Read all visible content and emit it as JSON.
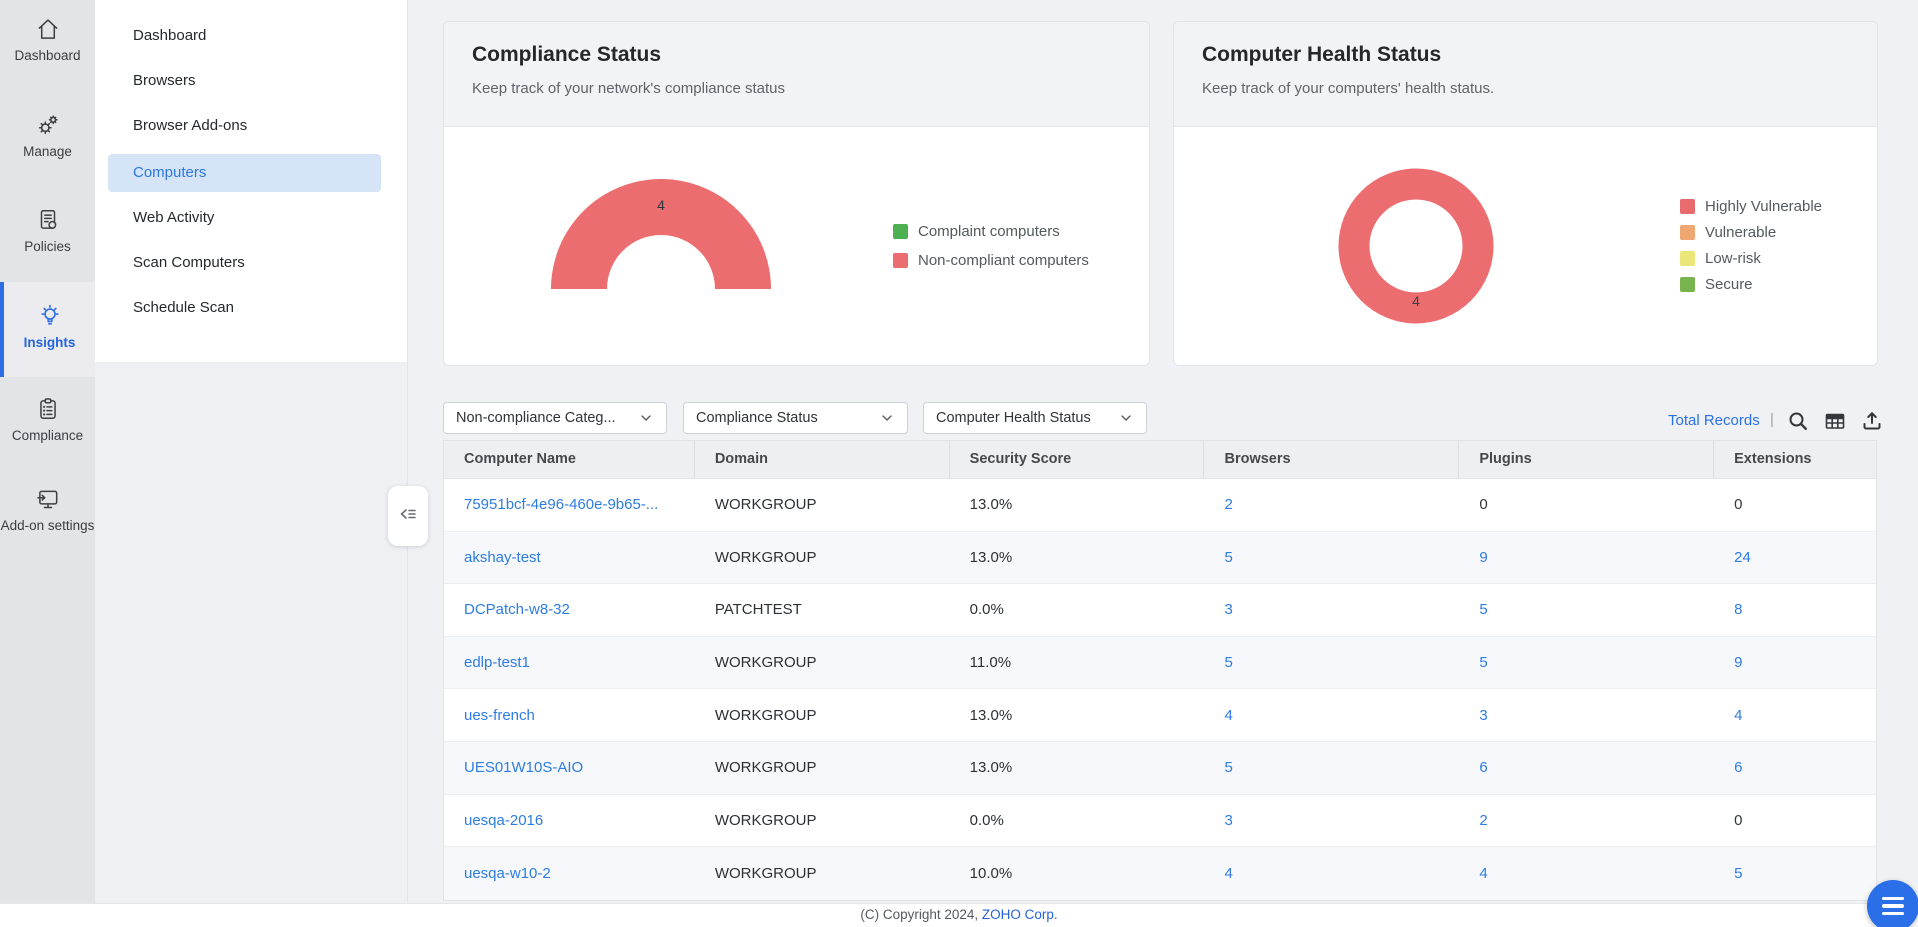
{
  "icon_rail": {
    "items": [
      {
        "label": "Dashboard",
        "icon": "home-icon",
        "selected": false
      },
      {
        "label": "Manage",
        "icon": "manage-gears-icon",
        "selected": false
      },
      {
        "label": "Policies",
        "icon": "policies-doc-icon",
        "selected": false
      },
      {
        "label": "Insights",
        "icon": "insights-bulb-icon",
        "selected": true
      },
      {
        "label": "Compliance",
        "icon": "compliance-clipboard-icon",
        "selected": false
      },
      {
        "label": "Add-on settings",
        "icon": "addon-settings-icon",
        "selected": false
      }
    ]
  },
  "menu": {
    "items": [
      {
        "label": "Dashboard",
        "selected": false
      },
      {
        "label": "Browsers",
        "selected": false
      },
      {
        "label": "Browser Add-ons",
        "selected": false
      },
      {
        "label": "Computers",
        "selected": true
      },
      {
        "label": "Web Activity",
        "selected": false
      },
      {
        "label": "Scan Computers",
        "selected": false
      },
      {
        "label": "Schedule Scan",
        "selected": false
      }
    ]
  },
  "cards": [
    {
      "title": "Compliance Status",
      "subtitle": "Keep track of your network's compliance status",
      "value": "4",
      "legend": [
        {
          "label": "Complaint computers",
          "color": "#4caf50"
        },
        {
          "label": "Non-compliant computers",
          "color": "#ec6d6f"
        }
      ]
    },
    {
      "title": "Computer Health Status",
      "subtitle": "Keep track of your computers' health status.",
      "value": "4",
      "legend": [
        {
          "label": "Highly Vulnerable",
          "color": "#e96a6d"
        },
        {
          "label": "Vulnerable",
          "color": "#efa871"
        },
        {
          "label": "Low-risk",
          "color": "#ece579"
        },
        {
          "label": "Secure",
          "color": "#77b44e"
        }
      ]
    }
  ],
  "chart_data": [
    {
      "type": "pie",
      "variant": "half-donut",
      "title": "Compliance Status",
      "labels": [
        "Complaint computers",
        "Non-compliant computers"
      ],
      "values": [
        0,
        4
      ],
      "colors": [
        "#4caf50",
        "#ec6d6f"
      ],
      "center_label": "4",
      "legend_position": "right"
    },
    {
      "type": "pie",
      "variant": "donut",
      "title": "Computer Health Status",
      "labels": [
        "Highly Vulnerable",
        "Vulnerable",
        "Low-risk",
        "Secure"
      ],
      "values": [
        4,
        0,
        0,
        0
      ],
      "colors": [
        "#e96a6d",
        "#efa871",
        "#ece579",
        "#77b44e"
      ],
      "center_label": "4",
      "legend_position": "right"
    }
  ],
  "filters": [
    {
      "label": "Non-compliance Categ..."
    },
    {
      "label": "Compliance Status"
    },
    {
      "label": "Computer Health Status"
    }
  ],
  "toolbar": {
    "total_records_label": "Total Records",
    "separator": "|"
  },
  "table": {
    "columns": [
      "Computer Name",
      "Domain",
      "Security Score",
      "Browsers",
      "Plugins",
      "Extensions"
    ],
    "rows": [
      {
        "computer_name": "75951bcf-4e96-460e-9b65-...",
        "domain": "WORKGROUP",
        "security_score": "13.0%",
        "browsers": "2",
        "plugins": "0",
        "extensions": "0"
      },
      {
        "computer_name": "akshay-test",
        "domain": "WORKGROUP",
        "security_score": "13.0%",
        "browsers": "5",
        "plugins": "9",
        "extensions": "24"
      },
      {
        "computer_name": "DCPatch-w8-32",
        "domain": "PATCHTEST",
        "security_score": "0.0%",
        "browsers": "3",
        "plugins": "5",
        "extensions": "8"
      },
      {
        "computer_name": "edlp-test1",
        "domain": "WORKGROUP",
        "security_score": "11.0%",
        "browsers": "5",
        "plugins": "5",
        "extensions": "9"
      },
      {
        "computer_name": "ues-french",
        "domain": "WORKGROUP",
        "security_score": "13.0%",
        "browsers": "4",
        "plugins": "3",
        "extensions": "4"
      },
      {
        "computer_name": "UES01W10S-AIO",
        "domain": "WORKGROUP",
        "security_score": "13.0%",
        "browsers": "5",
        "plugins": "6",
        "extensions": "6"
      },
      {
        "computer_name": "uesqa-2016",
        "domain": "WORKGROUP",
        "security_score": "0.0%",
        "browsers": "3",
        "plugins": "2",
        "extensions": "0"
      },
      {
        "computer_name": "uesqa-w10-2",
        "domain": "WORKGROUP",
        "security_score": "10.0%",
        "browsers": "4",
        "plugins": "4",
        "extensions": "5"
      }
    ]
  },
  "footer": {
    "copyright": "(C) Copyright 2024,",
    "company_link": "ZOHO Corp."
  },
  "colors": {
    "accent_blue": "#2d6fe2",
    "chart_red": "#ec6d6f",
    "selected_menu_bg": "#d5e4f6",
    "link_blue": "#2d7ce2",
    "rail_bg": "#e3e4e8",
    "content_bg": "#f0f1f5",
    "fab_blue": "#2a6ee8"
  }
}
